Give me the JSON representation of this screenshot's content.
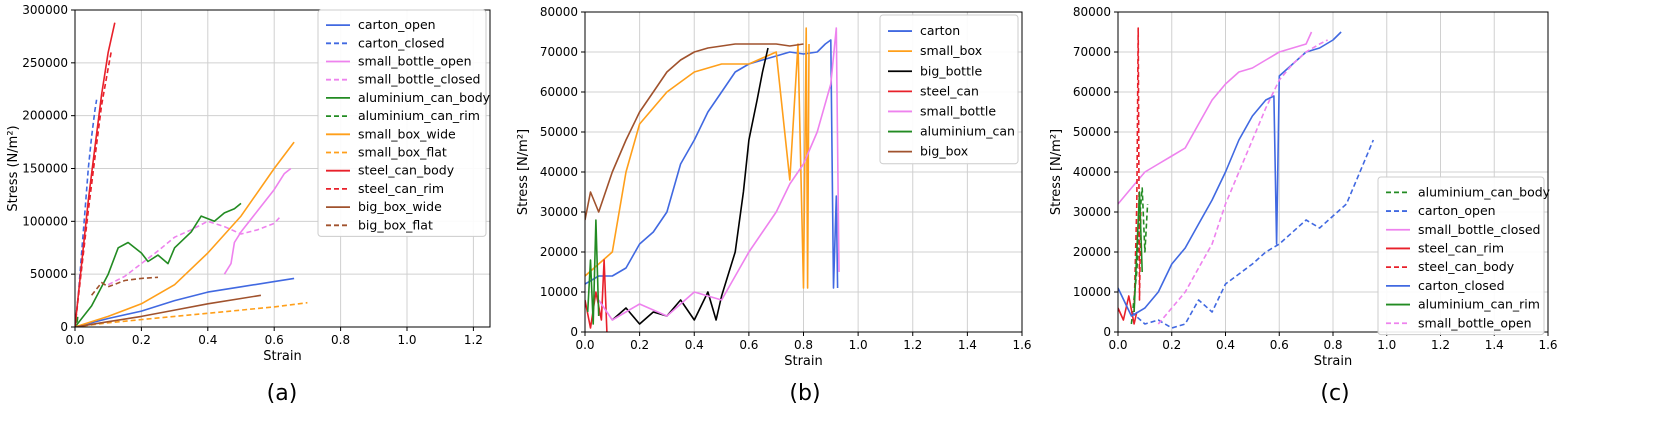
{
  "chart_data": [
    {
      "type": "line",
      "caption": "(a)",
      "xlabel": "Strain",
      "ylabel": "Stress (N/m²)",
      "xlim": [
        0,
        1.25
      ],
      "ylim": [
        0,
        300000
      ],
      "xticks": [
        "0.0",
        "0.2",
        "0.4",
        "0.6",
        "0.8",
        "1.0",
        "1.2"
      ],
      "yticks": [
        "0",
        "50000",
        "100000",
        "150000",
        "200000",
        "250000",
        "300000"
      ],
      "grid": true,
      "legend": "top-right",
      "series": [
        {
          "name": "carton_open",
          "color": "#4169e1",
          "dash": "solid",
          "x": [
            0,
            0.1,
            0.2,
            0.3,
            0.4,
            0.5,
            0.6,
            0.66
          ],
          "y": [
            0,
            8000,
            15000,
            25000,
            33000,
            38000,
            43000,
            46000
          ]
        },
        {
          "name": "carton_closed",
          "color": "#4169e1",
          "dash": "dashed",
          "x": [
            0,
            0.01,
            0.02,
            0.03,
            0.04,
            0.05,
            0.06,
            0.065
          ],
          "y": [
            0,
            30000,
            70000,
            110000,
            150000,
            180000,
            205000,
            215000
          ]
        },
        {
          "name": "small_bottle_open",
          "color": "#ee82ee",
          "dash": "solid",
          "x": [
            0.45,
            0.47,
            0.48,
            0.5,
            0.55,
            0.6,
            0.63,
            0.65
          ],
          "y": [
            50000,
            60000,
            80000,
            90000,
            110000,
            130000,
            145000,
            150000
          ]
        },
        {
          "name": "small_bottle_closed",
          "color": "#ee82ee",
          "dash": "dashed",
          "x": [
            0.1,
            0.15,
            0.2,
            0.25,
            0.3,
            0.35,
            0.4,
            0.45,
            0.5,
            0.55,
            0.6,
            0.62
          ],
          "y": [
            40000,
            48000,
            60000,
            72000,
            85000,
            92000,
            100000,
            95000,
            88000,
            92000,
            98000,
            105000
          ]
        },
        {
          "name": "aluminium_can_body",
          "color": "#228b22",
          "dash": "solid",
          "x": [
            0,
            0.05,
            0.1,
            0.13,
            0.16,
            0.2,
            0.22,
            0.25,
            0.28,
            0.3,
            0.35,
            0.38,
            0.42,
            0.45,
            0.48,
            0.5
          ],
          "y": [
            0,
            20000,
            50000,
            75000,
            80000,
            70000,
            62000,
            68000,
            60000,
            75000,
            90000,
            105000,
            100000,
            108000,
            112000,
            117000
          ]
        },
        {
          "name": "aluminium_can_rim",
          "color": "#228b22",
          "dash": "dashed",
          "x": [
            0,
            0.003,
            0.006,
            0.009
          ],
          "y": [
            0,
            8000,
            3000,
            12000
          ]
        },
        {
          "name": "small_box_wide",
          "color": "#ff9f1a",
          "dash": "solid",
          "x": [
            0,
            0.1,
            0.2,
            0.3,
            0.4,
            0.5,
            0.6,
            0.66
          ],
          "y": [
            0,
            10000,
            22000,
            40000,
            70000,
            105000,
            150000,
            175000
          ]
        },
        {
          "name": "small_box_flat",
          "color": "#ff9f1a",
          "dash": "dashed",
          "x": [
            0,
            0.1,
            0.2,
            0.3,
            0.4,
            0.5,
            0.6,
            0.7
          ],
          "y": [
            0,
            4000,
            7000,
            10000,
            13000,
            16000,
            19000,
            23000
          ]
        },
        {
          "name": "steel_can_body",
          "color": "#e8202a",
          "dash": "solid",
          "x": [
            0,
            0.02,
            0.04,
            0.06,
            0.08,
            0.1,
            0.12
          ],
          "y": [
            0,
            60000,
            120000,
            170000,
            220000,
            260000,
            288000
          ]
        },
        {
          "name": "steel_can_rim",
          "color": "#e8202a",
          "dash": "dashed",
          "x": [
            0,
            0.02,
            0.04,
            0.06,
            0.08,
            0.1,
            0.11
          ],
          "y": [
            0,
            55000,
            110000,
            160000,
            210000,
            245000,
            262000
          ]
        },
        {
          "name": "big_box_wide",
          "color": "#a0522d",
          "dash": "solid",
          "x": [
            0,
            0.1,
            0.2,
            0.3,
            0.4,
            0.5,
            0.56
          ],
          "y": [
            0,
            5000,
            10000,
            16000,
            22000,
            27000,
            30000
          ]
        },
        {
          "name": "big_box_flat",
          "color": "#a0522d",
          "dash": "dashed",
          "x": [
            0.05,
            0.08,
            0.1,
            0.15,
            0.2,
            0.25
          ],
          "y": [
            30000,
            42000,
            38000,
            44000,
            46000,
            47000
          ]
        }
      ]
    },
    {
      "type": "line",
      "caption": "(b)",
      "xlabel": "Strain",
      "ylabel": "Stress [N/m²]",
      "xlim": [
        0,
        1.6
      ],
      "ylim": [
        0,
        80000
      ],
      "xticks": [
        "0.0",
        "0.2",
        "0.4",
        "0.6",
        "0.8",
        "1.0",
        "1.2",
        "1.4",
        "1.6"
      ],
      "yticks": [
        "0",
        "10000",
        "20000",
        "30000",
        "40000",
        "50000",
        "60000",
        "70000",
        "80000"
      ],
      "grid": true,
      "legend": "top-right",
      "series": [
        {
          "name": "carton",
          "color": "#4169e1",
          "dash": "solid",
          "x": [
            0,
            0.05,
            0.1,
            0.15,
            0.2,
            0.25,
            0.3,
            0.35,
            0.4,
            0.45,
            0.5,
            0.55,
            0.6,
            0.65,
            0.7,
            0.75,
            0.8,
            0.85,
            0.88,
            0.9,
            0.91,
            0.92,
            0.925
          ],
          "y": [
            12000,
            14000,
            14000,
            16000,
            22000,
            25000,
            30000,
            42000,
            48000,
            55000,
            60000,
            65000,
            67000,
            68000,
            69000,
            70000,
            69500,
            70000,
            72000,
            73000,
            11000,
            34000,
            11000
          ]
        },
        {
          "name": "small_box",
          "color": "#ff9f1a",
          "dash": "solid",
          "x": [
            0,
            0.05,
            0.1,
            0.15,
            0.2,
            0.3,
            0.4,
            0.5,
            0.6,
            0.7,
            0.75,
            0.78,
            0.8,
            0.81,
            0.815,
            0.82
          ],
          "y": [
            14000,
            17000,
            20000,
            40000,
            52000,
            60000,
            65000,
            67000,
            67000,
            70000,
            38000,
            72000,
            11000,
            76000,
            11000,
            72000
          ]
        },
        {
          "name": "big_bottle",
          "color": "#000000",
          "dash": "solid",
          "x": [
            0.1,
            0.15,
            0.2,
            0.25,
            0.3,
            0.35,
            0.4,
            0.45,
            0.48,
            0.5,
            0.55,
            0.58,
            0.6,
            0.63,
            0.65,
            0.67
          ],
          "y": [
            3000,
            6000,
            2000,
            5000,
            4000,
            8000,
            3000,
            10000,
            3000,
            9000,
            20000,
            35000,
            48000,
            58000,
            65000,
            71000
          ]
        },
        {
          "name": "steel_can",
          "color": "#e8202a",
          "dash": "solid",
          "x": [
            0,
            0.02,
            0.04,
            0.06,
            0.07,
            0.08
          ],
          "y": [
            8000,
            1000,
            10000,
            3000,
            18000,
            0
          ]
        },
        {
          "name": "small_bottle",
          "color": "#ee82ee",
          "dash": "solid",
          "x": [
            0.05,
            0.1,
            0.2,
            0.3,
            0.4,
            0.5,
            0.6,
            0.7,
            0.75,
            0.8,
            0.85,
            0.9,
            0.92,
            0.93
          ],
          "y": [
            8000,
            3000,
            7000,
            4000,
            10000,
            8000,
            20000,
            30000,
            37000,
            42000,
            50000,
            62000,
            76000,
            15000
          ]
        },
        {
          "name": "aluminium_can",
          "color": "#228b22",
          "dash": "solid",
          "x": [
            0.01,
            0.02,
            0.03,
            0.04,
            0.05
          ],
          "y": [
            5000,
            18000,
            2000,
            28000,
            4000
          ]
        },
        {
          "name": "big_box",
          "color": "#a0522d",
          "dash": "solid",
          "x": [
            0,
            0.02,
            0.05,
            0.1,
            0.15,
            0.2,
            0.25,
            0.3,
            0.35,
            0.4,
            0.45,
            0.5,
            0.55,
            0.6,
            0.65,
            0.7,
            0.75,
            0.8
          ],
          "y": [
            28000,
            35000,
            30000,
            40000,
            48000,
            55000,
            60000,
            65000,
            68000,
            70000,
            71000,
            71500,
            72000,
            72000,
            72000,
            72000,
            71500,
            72000
          ]
        }
      ]
    },
    {
      "type": "line",
      "caption": "(c)",
      "xlabel": "Strain",
      "ylabel": "Stress [N/m²]",
      "xlim": [
        0,
        1.6
      ],
      "ylim": [
        0,
        80000
      ],
      "xticks": [
        "0.0",
        "0.2",
        "0.4",
        "0.6",
        "0.8",
        "1.0",
        "1.2",
        "1.4",
        "1.6"
      ],
      "yticks": [
        "0",
        "10000",
        "20000",
        "30000",
        "40000",
        "50000",
        "60000",
        "70000",
        "80000"
      ],
      "grid": true,
      "legend": "center-right",
      "series": [
        {
          "name": "aluminium_can_body",
          "color": "#228b22",
          "dash": "dashed",
          "x": [
            0.05,
            0.07,
            0.08,
            0.09,
            0.1,
            0.11
          ],
          "y": [
            2000,
            15000,
            28000,
            36000,
            20000,
            32000
          ]
        },
        {
          "name": "carton_open",
          "color": "#4169e1",
          "dash": "dashed",
          "x": [
            0.05,
            0.1,
            0.15,
            0.2,
            0.25,
            0.3,
            0.35,
            0.4,
            0.5,
            0.55,
            0.6,
            0.65,
            0.7,
            0.75,
            0.8,
            0.85,
            0.9,
            0.95
          ],
          "y": [
            5000,
            2000,
            3000,
            1000,
            2000,
            8000,
            5000,
            12000,
            17000,
            20000,
            22000,
            25000,
            28000,
            26000,
            29000,
            32000,
            40000,
            48000
          ]
        },
        {
          "name": "small_bottle_closed",
          "color": "#ee82ee",
          "dash": "solid",
          "x": [
            0,
            0.05,
            0.1,
            0.15,
            0.2,
            0.25,
            0.3,
            0.35,
            0.4,
            0.45,
            0.5,
            0.55,
            0.6,
            0.65,
            0.7,
            0.72
          ],
          "y": [
            32000,
            36000,
            40000,
            42000,
            44000,
            46000,
            52000,
            58000,
            62000,
            65000,
            66000,
            68000,
            70000,
            71000,
            72000,
            75000
          ]
        },
        {
          "name": "steel_can_rim",
          "color": "#e8202a",
          "dash": "solid",
          "x": [
            0,
            0.02,
            0.04,
            0.06,
            0.07
          ],
          "y": [
            6000,
            3000,
            9000,
            2000,
            5000
          ]
        },
        {
          "name": "steel_can_body",
          "color": "#e8202a",
          "dash": "dashed",
          "x": [
            0.06,
            0.07,
            0.075,
            0.08,
            0.085
          ],
          "y": [
            5000,
            32000,
            76000,
            8000,
            30000
          ]
        },
        {
          "name": "carton_closed",
          "color": "#4169e1",
          "dash": "solid",
          "x": [
            0,
            0.05,
            0.1,
            0.15,
            0.2,
            0.25,
            0.3,
            0.35,
            0.4,
            0.45,
            0.5,
            0.55,
            0.58,
            0.59,
            0.6,
            0.65,
            0.7,
            0.75,
            0.8,
            0.83
          ],
          "y": [
            11000,
            4000,
            6000,
            10000,
            17000,
            21000,
            27000,
            33000,
            40000,
            48000,
            54000,
            58000,
            59000,
            22000,
            64000,
            67000,
            70000,
            71000,
            73000,
            75000
          ]
        },
        {
          "name": "aluminium_can_rim",
          "color": "#228b22",
          "dash": "solid",
          "x": [
            0.06,
            0.07,
            0.08,
            0.09
          ],
          "y": [
            5000,
            20000,
            35000,
            15000
          ]
        },
        {
          "name": "small_bottle_open",
          "color": "#ee82ee",
          "dash": "dashed",
          "x": [
            0.15,
            0.2,
            0.25,
            0.3,
            0.35,
            0.4,
            0.45,
            0.5,
            0.55,
            0.6,
            0.65,
            0.7,
            0.75,
            0.78
          ],
          "y": [
            2000,
            6000,
            10000,
            16000,
            22000,
            32000,
            40000,
            48000,
            56000,
            63000,
            67000,
            70000,
            72000,
            73000
          ]
        }
      ]
    }
  ]
}
